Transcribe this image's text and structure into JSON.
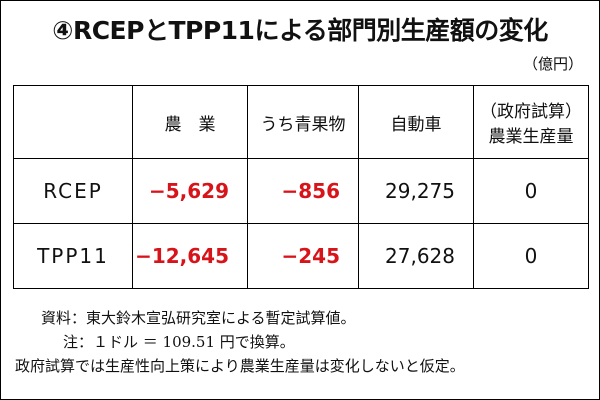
{
  "title": "④RCEPとTPP11による部門別生産額の変化",
  "unit": "（億円）",
  "table": {
    "header": [
      "",
      "農　業",
      "うち青果物",
      "自動車",
      [
        "（政府試算）",
        "農業生産量"
      ]
    ],
    "rows": [
      [
        "RCEP",
        "−5,629",
        "−856",
        "29,275",
        "0"
      ],
      [
        "TPP11",
        "−12,645",
        "−245",
        "27,628",
        "0"
      ]
    ]
  },
  "notes": [
    "資料：東大鈴木宣弘研究室による暫定試算値。",
    "注：１ドル ＝ 109.51 円で換算。",
    "政府試算では生産性向上策により農業生産量は変化しないと仮定。"
  ]
}
